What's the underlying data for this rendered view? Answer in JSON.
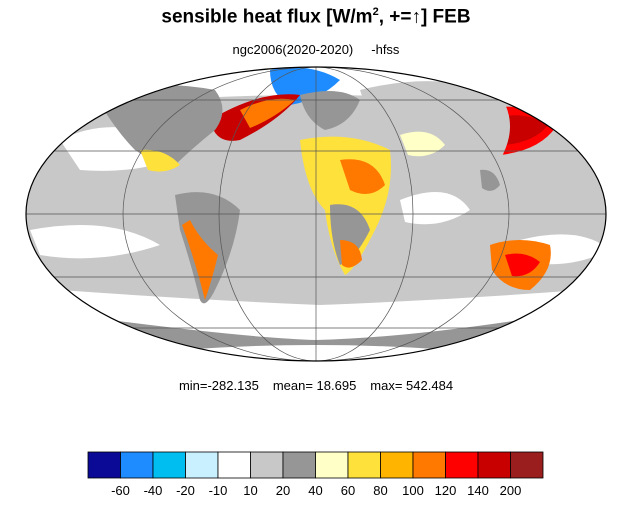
{
  "title": {
    "prefix": "sensible heat flux [W/m",
    "superscript": "2",
    "middle": ", +=",
    "arrow": "↑",
    "suffix": "]  FEB"
  },
  "subtitle": {
    "case": "ngc2006(2020-2020)",
    "variable": "-hfss"
  },
  "stats": {
    "min": "min=-282.135",
    "mean": "mean=  18.695",
    "max": "max= 542.484"
  },
  "colorbar": {
    "colors": [
      "#0a0a96",
      "#1e8cff",
      "#00bef0",
      "#c8f0ff",
      "#ffffff",
      "#c8c8c8",
      "#969696",
      "#ffffc8",
      "#ffe13c",
      "#ffb400",
      "#ff7800",
      "#ff0000",
      "#c80000",
      "#9b1e1e"
    ],
    "labels": [
      "-60",
      "-40",
      "-20",
      "-10",
      "10",
      "20",
      "40",
      "60",
      "80",
      "100",
      "120",
      "140",
      "200"
    ]
  }
}
